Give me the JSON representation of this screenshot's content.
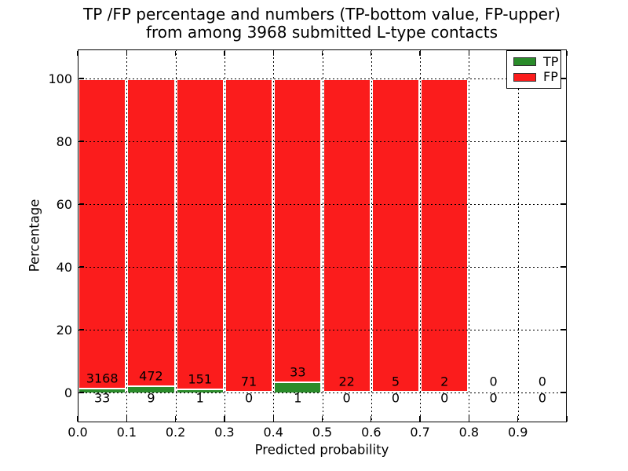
{
  "title": {
    "line1": "TP /FP percentage and numbers (TP-bottom value, FP-upper)",
    "line2": "from among 3968 submitted L-type contacts"
  },
  "x_axis": {
    "label": "Predicted probability",
    "ticks": [
      "0.0",
      "0.1",
      "0.2",
      "0.3",
      "0.4",
      "0.5",
      "0.6",
      "0.7",
      "0.8",
      "0.9"
    ]
  },
  "y_axis": {
    "label": "Percentage",
    "ticks": [
      "0",
      "20",
      "40",
      "60",
      "80",
      "100"
    ]
  },
  "legend": {
    "items": [
      {
        "label": "TP",
        "color": "#2a8b2a"
      },
      {
        "label": "FP",
        "color": "#fb1c1c"
      }
    ]
  },
  "chart_data": {
    "type": "bar",
    "variant": "stacked-percentage-histogram",
    "title": "TP /FP percentage and numbers (TP-bottom value, FP-upper) from among 3968 submitted L-type contacts",
    "xlabel": "Predicted probability",
    "ylabel": "Percentage",
    "total_contacts": 3968,
    "bin_width": 0.1,
    "xlim": [
      0,
      1
    ],
    "ylim": [
      -10,
      110
    ],
    "x_tick_values": [
      0.0,
      0.1,
      0.2,
      0.3,
      0.4,
      0.5,
      0.6,
      0.7,
      0.8,
      0.9
    ],
    "y_tick_values": [
      0,
      20,
      40,
      60,
      80,
      100
    ],
    "grid": true,
    "legend_position": "upper right",
    "categories": [
      "0.0-0.1",
      "0.1-0.2",
      "0.2-0.3",
      "0.3-0.4",
      "0.4-0.5",
      "0.5-0.6",
      "0.6-0.7",
      "0.7-0.8",
      "0.8-0.9",
      "0.9-1.0"
    ],
    "series": [
      {
        "name": "TP",
        "color": "#2a8b2a",
        "values": [
          33,
          9,
          1,
          0,
          1,
          0,
          0,
          0,
          0,
          0
        ]
      },
      {
        "name": "FP",
        "color": "#fb1c1c",
        "values": [
          3168,
          472,
          151,
          71,
          33,
          22,
          5,
          2,
          0,
          0
        ]
      }
    ],
    "bar_heights_percent": {
      "TP": [
        1.03,
        1.87,
        0.66,
        0,
        2.94,
        0,
        0,
        0,
        0,
        0
      ],
      "FP": [
        98.97,
        98.13,
        99.34,
        100,
        97.06,
        100,
        100,
        100,
        0,
        0
      ]
    }
  }
}
